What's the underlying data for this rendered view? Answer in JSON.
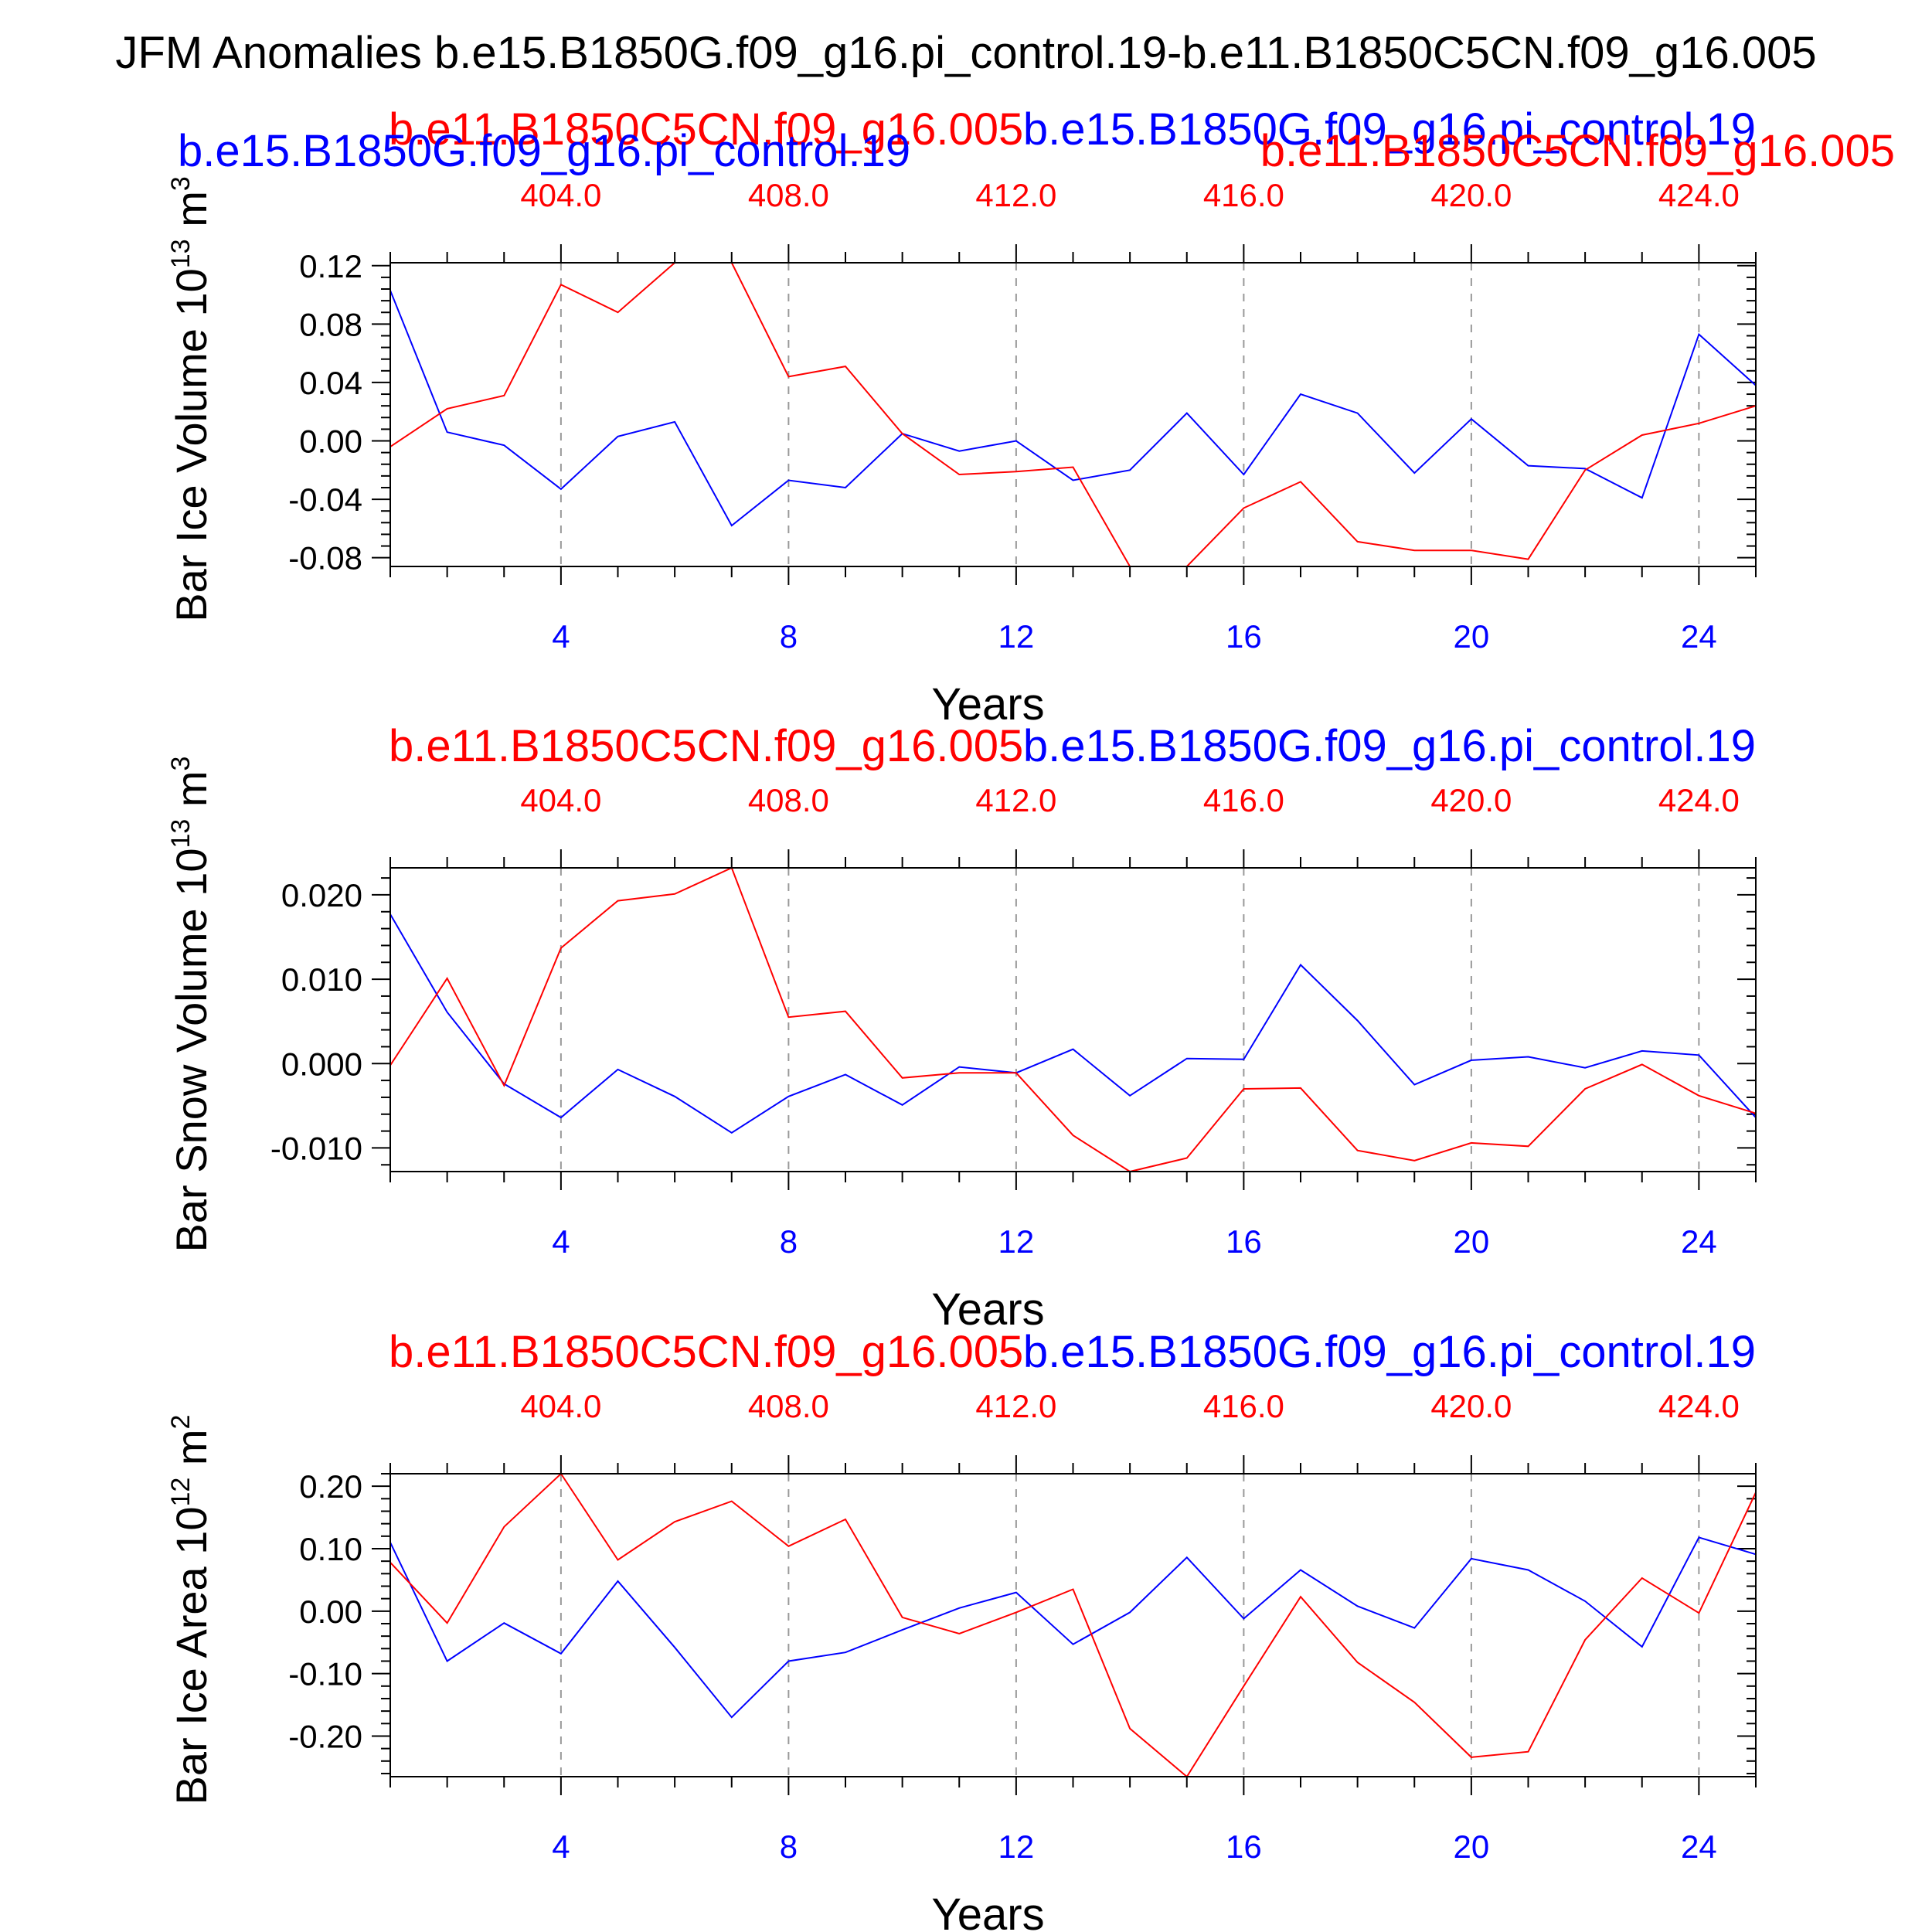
{
  "title": "JFM Anomalies b.e15.B1850G.f09_g16.pi_control.19-b.e11.B1850C5CN.f09_g16.005",
  "colors": {
    "series_a": "#0000ff",
    "series_b": "#ff0000",
    "axis": "#000000",
    "grid": "#999999"
  },
  "chart_data": [
    {
      "type": "line",
      "ylabel": "Bar Ice Volume 10",
      "ylabel_exp": "13",
      "ylabel_unit": "m",
      "ylabel_unit_exp": "3",
      "xlabel": "Years",
      "xlim": [
        1,
        25
      ],
      "ylim": [
        -0.086,
        0.122
      ],
      "yticks": [
        -0.08,
        -0.04,
        0.0,
        0.04,
        0.08,
        0.12
      ],
      "ytick_labels": [
        "-0.08",
        "-0.04",
        "0.00",
        "0.04",
        "0.08",
        "0.12"
      ],
      "xticks": [
        4,
        8,
        12,
        16,
        20,
        24
      ],
      "xtick_labels": [
        "4",
        "8",
        "12",
        "16",
        "20",
        "24"
      ],
      "top_ticks": [
        4,
        8,
        12,
        16,
        20,
        24
      ],
      "top_tick_labels": [
        "404.0",
        "408.0",
        "412.0",
        "416.0",
        "420.0",
        "424.0"
      ],
      "grid": "vertical dashed at major ticks",
      "series_labels": {
        "b": "b.e11.B1850C5CN.f09_g16.005",
        "a": "b.e15.B1850G.f09_g16.pi_control.19",
        "a_left": "b.e15.B1850G.f09_g16.pi_control.19",
        "b_right": "b.e11.B1850C5CN.f09_g16.005"
      },
      "series": [
        {
          "name": "b.e15.B1850G.f09_g16.pi_control.19",
          "color": "#0000ff",
          "x": [
            1,
            2,
            3,
            4,
            5,
            6,
            7,
            8,
            9,
            10,
            11,
            12,
            13,
            14,
            15,
            16,
            17,
            18,
            19,
            20,
            21,
            22,
            23,
            24,
            25
          ],
          "values": [
            0.103,
            0.006,
            -0.003,
            -0.033,
            0.003,
            0.013,
            -0.058,
            -0.027,
            -0.032,
            0.005,
            -0.007,
            0.0,
            -0.027,
            -0.02,
            0.019,
            -0.023,
            0.032,
            0.019,
            -0.022,
            0.015,
            -0.017,
            -0.019,
            -0.039,
            0.073,
            0.038
          ]
        },
        {
          "name": "b.e11.B1850C5CN.f09_g16.005",
          "color": "#ff0000",
          "x": [
            1,
            2,
            3,
            4,
            5,
            6,
            7,
            8,
            9,
            10,
            11,
            12,
            13,
            14,
            15,
            16,
            17,
            18,
            19,
            20,
            21,
            22,
            23,
            24,
            25
          ],
          "values": [
            -0.004,
            0.022,
            0.031,
            0.107,
            0.088,
            0.122,
            0.122,
            0.044,
            0.051,
            0.005,
            -0.023,
            -0.021,
            -0.018,
            -0.086,
            -0.086,
            -0.046,
            -0.028,
            -0.069,
            -0.075,
            -0.075,
            -0.081,
            -0.02,
            0.004,
            0.012,
            0.024
          ]
        }
      ]
    },
    {
      "type": "line",
      "ylabel": "Bar Snow Volume 10",
      "ylabel_exp": "13",
      "ylabel_unit": "m",
      "ylabel_unit_exp": "3",
      "xlabel": "Years",
      "xlim": [
        1,
        25
      ],
      "ylim": [
        -0.0128,
        0.0232
      ],
      "yticks": [
        -0.01,
        0.0,
        0.01,
        0.02
      ],
      "ytick_labels": [
        "-0.010",
        "0.000",
        "0.010",
        "0.020"
      ],
      "xticks": [
        4,
        8,
        12,
        16,
        20,
        24
      ],
      "xtick_labels": [
        "4",
        "8",
        "12",
        "16",
        "20",
        "24"
      ],
      "top_ticks": [
        4,
        8,
        12,
        16,
        20,
        24
      ],
      "top_tick_labels": [
        "404.0",
        "408.0",
        "412.0",
        "416.0",
        "420.0",
        "424.0"
      ],
      "grid": "vertical dashed at major ticks",
      "series_labels": {
        "b": "b.e11.B1850C5CN.f09_g16.005",
        "a": "b.e15.B1850G.f09_g16.pi_control.19"
      },
      "series": [
        {
          "name": "b.e15.B1850G.f09_g16.pi_control.19",
          "color": "#0000ff",
          "x": [
            1,
            2,
            3,
            4,
            5,
            6,
            7,
            8,
            9,
            10,
            11,
            12,
            13,
            14,
            15,
            16,
            17,
            18,
            19,
            20,
            21,
            22,
            23,
            24,
            25
          ],
          "values": [
            0.0177,
            0.0061,
            -0.0024,
            -0.0064,
            -0.0007,
            -0.0039,
            -0.0082,
            -0.0039,
            -0.0013,
            -0.0049,
            -0.0004,
            -0.0011,
            0.0017,
            -0.0038,
            0.0006,
            0.0005,
            0.0117,
            0.0051,
            -0.0025,
            0.0004,
            0.0008,
            -0.0005,
            0.0015,
            0.001,
            -0.0064
          ]
        },
        {
          "name": "b.e11.B1850C5CN.f09_g16.005",
          "color": "#ff0000",
          "x": [
            1,
            2,
            3,
            4,
            5,
            6,
            7,
            8,
            9,
            10,
            11,
            12,
            13,
            14,
            15,
            16,
            17,
            18,
            19,
            20,
            21,
            22,
            23,
            24,
            25
          ],
          "values": [
            -0.0002,
            0.0101,
            -0.0026,
            0.0137,
            0.0193,
            0.0201,
            0.0232,
            0.0055,
            0.0062,
            -0.0017,
            -0.0011,
            -0.0011,
            -0.0085,
            -0.0128,
            -0.0112,
            -0.003,
            -0.0029,
            -0.0103,
            -0.0115,
            -0.0094,
            -0.0098,
            -0.003,
            -0.0001,
            -0.0038,
            -0.0059
          ]
        }
      ]
    },
    {
      "type": "line",
      "ylabel": "Bar Ice Area 10",
      "ylabel_exp": "12",
      "ylabel_unit": "m",
      "ylabel_unit_exp": "2",
      "xlabel": "Years",
      "xlim": [
        1,
        25
      ],
      "ylim": [
        -0.265,
        0.22
      ],
      "yticks": [
        -0.2,
        -0.1,
        0.0,
        0.1,
        0.2
      ],
      "ytick_labels": [
        "-0.20",
        "-0.10",
        "0.00",
        "0.10",
        "0.20"
      ],
      "xticks": [
        4,
        8,
        12,
        16,
        20,
        24
      ],
      "xtick_labels": [
        "4",
        "8",
        "12",
        "16",
        "20",
        "24"
      ],
      "top_ticks": [
        4,
        8,
        12,
        16,
        20,
        24
      ],
      "top_tick_labels": [
        "404.0",
        "408.0",
        "412.0",
        "416.0",
        "420.0",
        "424.0"
      ],
      "grid": "vertical dashed at major ticks",
      "series_labels": {
        "b": "b.e11.B1850C5CN.f09_g16.005",
        "a": "b.e15.B1850G.f09_g16.pi_control.19"
      },
      "series": [
        {
          "name": "b.e15.B1850G.f09_g16.pi_control.19",
          "color": "#0000ff",
          "x": [
            1,
            2,
            3,
            4,
            5,
            6,
            7,
            8,
            9,
            10,
            11,
            12,
            13,
            14,
            15,
            16,
            17,
            18,
            19,
            20,
            21,
            22,
            23,
            24,
            25
          ],
          "values": [
            0.11,
            -0.08,
            -0.019,
            -0.068,
            0.048,
            -0.058,
            -0.17,
            -0.08,
            -0.066,
            -0.03,
            0.005,
            0.03,
            -0.053,
            -0.002,
            0.086,
            -0.012,
            0.066,
            0.008,
            -0.027,
            0.084,
            0.066,
            0.016,
            -0.057,
            0.118,
            0.091
          ]
        },
        {
          "name": "b.e11.B1850C5CN.f09_g16.005",
          "color": "#ff0000",
          "x": [
            1,
            2,
            3,
            4,
            5,
            6,
            7,
            8,
            9,
            10,
            11,
            12,
            13,
            14,
            15,
            16,
            17,
            18,
            19,
            20,
            21,
            22,
            23,
            24,
            25
          ],
          "values": [
            0.078,
            -0.019,
            0.135,
            0.22,
            0.082,
            0.143,
            0.176,
            0.104,
            0.147,
            -0.01,
            -0.036,
            -0.002,
            0.035,
            -0.188,
            -0.265,
            -0.12,
            0.023,
            -0.082,
            -0.146,
            -0.234,
            -0.225,
            -0.046,
            0.053,
            -0.003,
            0.19
          ]
        }
      ]
    }
  ]
}
